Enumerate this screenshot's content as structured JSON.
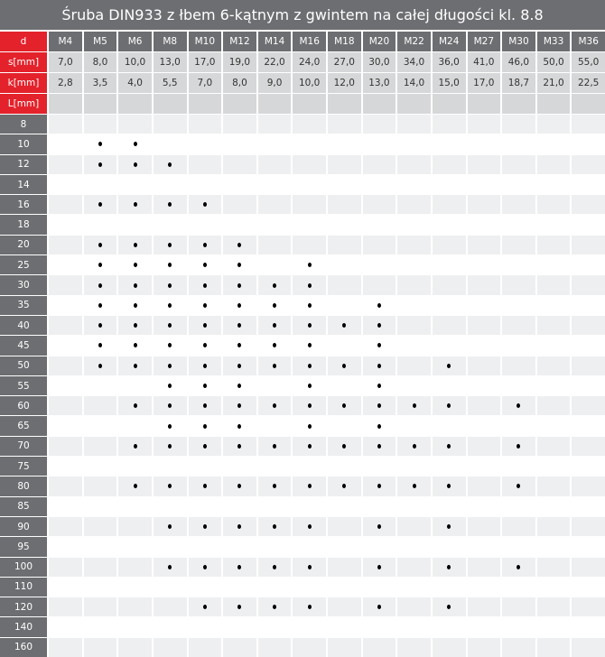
{
  "title": "Śruba DIN933 z łbem 6-kątnym z gwintem na całej długości kl. 8.8",
  "header": {
    "d_label": "d",
    "s_label": "s[mm]",
    "k_label": "k[mm]",
    "L_label": "L[mm]",
    "sizes": [
      "M4",
      "M5",
      "M6",
      "M8",
      "M10",
      "M12",
      "M14",
      "M16",
      "M18",
      "M20",
      "M22",
      "M24",
      "M27",
      "M30",
      "M33",
      "M36"
    ],
    "s": [
      "7,0",
      "8,0",
      "10,0",
      "13,0",
      "17,0",
      "19,0",
      "22,0",
      "24,0",
      "27,0",
      "30,0",
      "34,0",
      "36,0",
      "41,0",
      "46,0",
      "50,0",
      "55,0"
    ],
    "k": [
      "2,8",
      "3,5",
      "4,0",
      "5,5",
      "7,0",
      "8,0",
      "9,0",
      "10,0",
      "12,0",
      "13,0",
      "14,0",
      "15,0",
      "17,0",
      "18,7",
      "21,0",
      "22,5"
    ]
  },
  "rows": [
    {
      "L": "8",
      "avail": []
    },
    {
      "L": "10",
      "avail": [
        "M5",
        "M6"
      ]
    },
    {
      "L": "12",
      "avail": [
        "M5",
        "M6",
        "M8"
      ]
    },
    {
      "L": "14",
      "avail": []
    },
    {
      "L": "16",
      "avail": [
        "M5",
        "M6",
        "M8",
        "M10"
      ]
    },
    {
      "L": "18",
      "avail": []
    },
    {
      "L": "20",
      "avail": [
        "M5",
        "M6",
        "M8",
        "M10",
        "M12"
      ]
    },
    {
      "L": "25",
      "avail": [
        "M5",
        "M6",
        "M8",
        "M10",
        "M12",
        "M16"
      ]
    },
    {
      "L": "30",
      "avail": [
        "M5",
        "M6",
        "M8",
        "M10",
        "M12",
        "M14",
        "M16"
      ]
    },
    {
      "L": "35",
      "avail": [
        "M5",
        "M6",
        "M8",
        "M10",
        "M12",
        "M14",
        "M16",
        "M20"
      ]
    },
    {
      "L": "40",
      "avail": [
        "M5",
        "M6",
        "M8",
        "M10",
        "M12",
        "M14",
        "M16",
        "M18",
        "M20"
      ]
    },
    {
      "L": "45",
      "avail": [
        "M5",
        "M6",
        "M8",
        "M10",
        "M12",
        "M14",
        "M16",
        "M20"
      ]
    },
    {
      "L": "50",
      "avail": [
        "M5",
        "M6",
        "M8",
        "M10",
        "M12",
        "M14",
        "M16",
        "M18",
        "M20",
        "M24"
      ]
    },
    {
      "L": "55",
      "avail": [
        "M8",
        "M10",
        "M12",
        "M16",
        "M20"
      ]
    },
    {
      "L": "60",
      "avail": [
        "M6",
        "M8",
        "M10",
        "M12",
        "M14",
        "M16",
        "M18",
        "M20",
        "M22",
        "M24",
        "M30"
      ]
    },
    {
      "L": "65",
      "avail": [
        "M8",
        "M10",
        "M12",
        "M16",
        "M20"
      ]
    },
    {
      "L": "70",
      "avail": [
        "M6",
        "M8",
        "M10",
        "M12",
        "M14",
        "M16",
        "M18",
        "M20",
        "M22",
        "M24",
        "M30"
      ]
    },
    {
      "L": "75",
      "avail": []
    },
    {
      "L": "80",
      "avail": [
        "M6",
        "M8",
        "M10",
        "M12",
        "M14",
        "M16",
        "M18",
        "M20",
        "M22",
        "M24",
        "M30"
      ]
    },
    {
      "L": "85",
      "avail": []
    },
    {
      "L": "90",
      "avail": [
        "M8",
        "M10",
        "M12",
        "M14",
        "M16",
        "M20",
        "M24"
      ]
    },
    {
      "L": "95",
      "avail": []
    },
    {
      "L": "100",
      "avail": [
        "M8",
        "M10",
        "M12",
        "M14",
        "M16",
        "M20",
        "M24",
        "M30"
      ]
    },
    {
      "L": "110",
      "avail": []
    },
    {
      "L": "120",
      "avail": [
        "M10",
        "M12",
        "M14",
        "M16",
        "M20",
        "M24"
      ]
    },
    {
      "L": "140",
      "avail": []
    },
    {
      "L": "160",
      "avail": []
    }
  ],
  "colors": {
    "accent": "#e3222b",
    "dark": "#6d6e71",
    "light": "#d6d7d8",
    "stripe": "#eeeff0"
  }
}
